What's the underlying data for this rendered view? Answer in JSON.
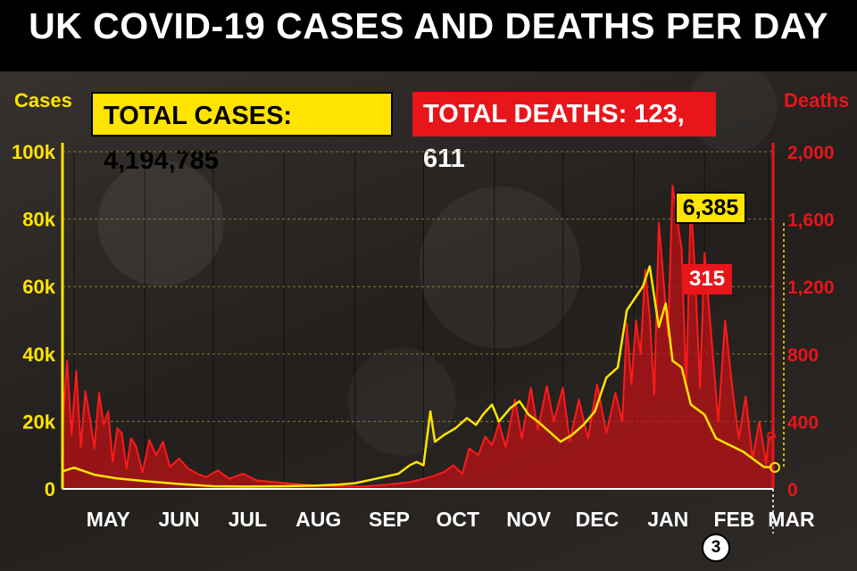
{
  "header": {
    "title": "UK COVID-19 CASES AND DEATHS PER DAY"
  },
  "totals": {
    "cases_label": "TOTAL CASES: 4,194,785",
    "deaths_label": "TOTAL DEATHS: 123, 611"
  },
  "callouts": {
    "latest_cases": "6,385",
    "latest_deaths": "315",
    "date_marker": "3"
  },
  "colors": {
    "cases": "#ffe400",
    "deaths": "#e8151b",
    "background": "#2a2624",
    "header": "#000000"
  },
  "chart_data": {
    "type": "line",
    "title": "UK COVID-19 CASES AND DEATHS PER DAY",
    "x": {
      "categories": [
        "MAY",
        "JUN",
        "JUL",
        "AUG",
        "SEP",
        "OCT",
        "NOV",
        "DEC",
        "JAN",
        "FEB",
        "MAR"
      ],
      "start": "2020-04-26",
      "end": "2021-03-03"
    },
    "y_left": {
      "label": "Cases",
      "range": [
        0,
        100000
      ],
      "ticks": [
        0,
        20000,
        40000,
        60000,
        80000,
        100000
      ],
      "tick_labels": [
        "0",
        "20k",
        "40k",
        "60k",
        "80k",
        "100k"
      ]
    },
    "y_right": {
      "label": "Deaths",
      "range": [
        0,
        2000
      ],
      "ticks": [
        0,
        400,
        800,
        1200,
        1600,
        2000
      ],
      "tick_labels": [
        "0",
        "400",
        "800",
        "1,200",
        "1,600",
        "2,000"
      ]
    },
    "grid": true,
    "series": [
      {
        "name": "Cases",
        "axis": "left",
        "style": "line",
        "points": [
          [
            "2020-04-26",
            5200
          ],
          [
            "2020-05-01",
            6300
          ],
          [
            "2020-05-10",
            4200
          ],
          [
            "2020-05-20",
            3100
          ],
          [
            "2020-06-01",
            2300
          ],
          [
            "2020-06-15",
            1500
          ],
          [
            "2020-07-01",
            800
          ],
          [
            "2020-07-15",
            700
          ],
          [
            "2020-08-01",
            800
          ],
          [
            "2020-08-15",
            1000
          ],
          [
            "2020-08-25",
            1300
          ],
          [
            "2020-09-01",
            1700
          ],
          [
            "2020-09-10",
            3000
          ],
          [
            "2020-09-20",
            4500
          ],
          [
            "2020-09-25",
            7000
          ],
          [
            "2020-09-28",
            8000
          ],
          [
            "2020-10-01",
            7000
          ],
          [
            "2020-10-04",
            23000
          ],
          [
            "2020-10-06",
            14000
          ],
          [
            "2020-10-10",
            16000
          ],
          [
            "2020-10-15",
            18000
          ],
          [
            "2020-10-20",
            21000
          ],
          [
            "2020-10-24",
            19000
          ],
          [
            "2020-10-27",
            22000
          ],
          [
            "2020-10-31",
            25000
          ],
          [
            "2020-11-03",
            20000
          ],
          [
            "2020-11-08",
            24000
          ],
          [
            "2020-11-12",
            26000
          ],
          [
            "2020-11-16",
            22000
          ],
          [
            "2020-11-20",
            20000
          ],
          [
            "2020-11-25",
            17000
          ],
          [
            "2020-11-30",
            14000
          ],
          [
            "2020-12-05",
            16000
          ],
          [
            "2020-12-10",
            19000
          ],
          [
            "2020-12-15",
            23000
          ],
          [
            "2020-12-20",
            33000
          ],
          [
            "2020-12-25",
            36000
          ],
          [
            "2020-12-29",
            53000
          ],
          [
            "2021-01-02",
            57000
          ],
          [
            "2021-01-05",
            60000
          ],
          [
            "2021-01-08",
            66000
          ],
          [
            "2021-01-12",
            48000
          ],
          [
            "2021-01-15",
            55000
          ],
          [
            "2021-01-18",
            38000
          ],
          [
            "2021-01-22",
            36000
          ],
          [
            "2021-01-26",
            25000
          ],
          [
            "2021-02-01",
            22000
          ],
          [
            "2021-02-06",
            15000
          ],
          [
            "2021-02-12",
            13000
          ],
          [
            "2021-02-18",
            11000
          ],
          [
            "2021-02-23",
            8500
          ],
          [
            "2021-02-27",
            6500
          ],
          [
            "2021-03-03",
            6385
          ]
        ]
      },
      {
        "name": "Deaths",
        "axis": "right",
        "style": "filled-area",
        "points": [
          [
            "2020-04-26",
            360
          ],
          [
            "2020-04-28",
            760
          ],
          [
            "2020-04-30",
            320
          ],
          [
            "2020-05-02",
            700
          ],
          [
            "2020-05-04",
            250
          ],
          [
            "2020-05-06",
            580
          ],
          [
            "2020-05-08",
            420
          ],
          [
            "2020-05-10",
            240
          ],
          [
            "2020-05-12",
            570
          ],
          [
            "2020-05-14",
            380
          ],
          [
            "2020-05-16",
            460
          ],
          [
            "2020-05-18",
            160
          ],
          [
            "2020-05-20",
            360
          ],
          [
            "2020-05-22",
            330
          ],
          [
            "2020-05-24",
            120
          ],
          [
            "2020-05-26",
            300
          ],
          [
            "2020-05-28",
            260
          ],
          [
            "2020-05-31",
            100
          ],
          [
            "2020-06-03",
            290
          ],
          [
            "2020-06-06",
            200
          ],
          [
            "2020-06-09",
            280
          ],
          [
            "2020-06-12",
            130
          ],
          [
            "2020-06-16",
            180
          ],
          [
            "2020-06-20",
            120
          ],
          [
            "2020-06-24",
            90
          ],
          [
            "2020-06-28",
            70
          ],
          [
            "2020-07-03",
            110
          ],
          [
            "2020-07-08",
            60
          ],
          [
            "2020-07-14",
            90
          ],
          [
            "2020-07-20",
            50
          ],
          [
            "2020-07-28",
            40
          ],
          [
            "2020-08-05",
            30
          ],
          [
            "2020-08-15",
            20
          ],
          [
            "2020-08-25",
            15
          ],
          [
            "2020-09-05",
            15
          ],
          [
            "2020-09-15",
            25
          ],
          [
            "2020-09-25",
            40
          ],
          [
            "2020-10-01",
            60
          ],
          [
            "2020-10-06",
            80
          ],
          [
            "2020-10-10",
            100
          ],
          [
            "2020-10-14",
            140
          ],
          [
            "2020-10-18",
            90
          ],
          [
            "2020-10-21",
            240
          ],
          [
            "2020-10-25",
            200
          ],
          [
            "2020-10-28",
            310
          ],
          [
            "2020-10-31",
            260
          ],
          [
            "2020-11-03",
            390
          ],
          [
            "2020-11-06",
            250
          ],
          [
            "2020-11-10",
            530
          ],
          [
            "2020-11-13",
            300
          ],
          [
            "2020-11-17",
            600
          ],
          [
            "2020-11-20",
            350
          ],
          [
            "2020-11-24",
            610
          ],
          [
            "2020-11-27",
            400
          ],
          [
            "2020-12-01",
            600
          ],
          [
            "2020-12-04",
            280
          ],
          [
            "2020-12-08",
            530
          ],
          [
            "2020-12-12",
            300
          ],
          [
            "2020-12-16",
            620
          ],
          [
            "2020-12-20",
            330
          ],
          [
            "2020-12-24",
            570
          ],
          [
            "2020-12-27",
            400
          ],
          [
            "2020-12-29",
            980
          ],
          [
            "2020-12-31",
            620
          ],
          [
            "2021-01-02",
            1000
          ],
          [
            "2021-01-04",
            800
          ],
          [
            "2021-01-06",
            1300
          ],
          [
            "2021-01-08",
            1020
          ],
          [
            "2021-01-10",
            560
          ],
          [
            "2021-01-12",
            1580
          ],
          [
            "2021-01-14",
            1250
          ],
          [
            "2021-01-16",
            900
          ],
          [
            "2021-01-18",
            1800
          ],
          [
            "2021-01-20",
            1600
          ],
          [
            "2021-01-22",
            1420
          ],
          [
            "2021-01-24",
            600
          ],
          [
            "2021-01-26",
            1720
          ],
          [
            "2021-01-28",
            1230
          ],
          [
            "2021-01-30",
            600
          ],
          [
            "2021-02-01",
            1400
          ],
          [
            "2021-02-04",
            900
          ],
          [
            "2021-02-07",
            400
          ],
          [
            "2021-02-10",
            1000
          ],
          [
            "2021-02-13",
            620
          ],
          [
            "2021-02-16",
            300
          ],
          [
            "2021-02-19",
            550
          ],
          [
            "2021-02-22",
            180
          ],
          [
            "2021-02-25",
            400
          ],
          [
            "2021-02-28",
            150
          ],
          [
            "2021-03-01",
            300
          ],
          [
            "2021-03-03",
            315
          ]
        ]
      }
    ],
    "annotations": [
      {
        "text": "6,385",
        "series": "Cases",
        "date": "2021-03-03"
      },
      {
        "text": "315",
        "series": "Deaths",
        "date": "2021-03-03"
      },
      {
        "text": "3",
        "date": "2021-03-03"
      }
    ]
  }
}
